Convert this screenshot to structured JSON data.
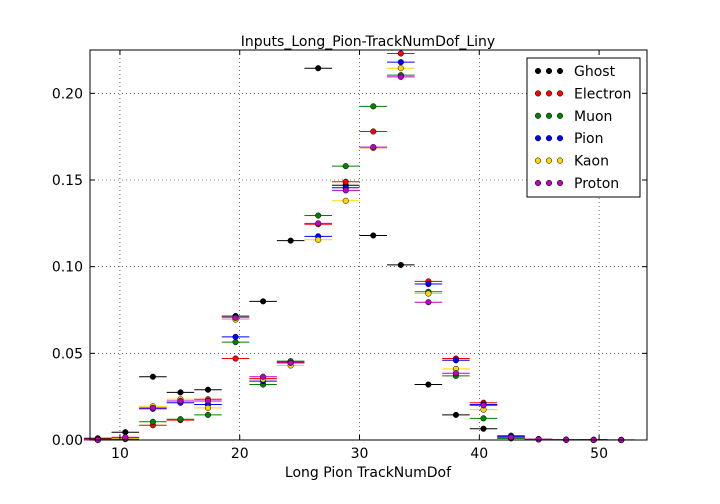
{
  "chart_data": {
    "type": "scatter",
    "title": "Inputs_Long_Pion-TrackNumDof_Liny",
    "xlabel": "Long Pion TrackNumDof",
    "ylabel": "",
    "xlim": [
      7.5,
      54
    ],
    "ylim": [
      0,
      0.225
    ],
    "xticks": [
      10,
      20,
      30,
      40,
      50
    ],
    "yticks": [
      0.0,
      0.05,
      0.1,
      0.15,
      0.2
    ],
    "ytick_labels": [
      "0.00",
      "0.05",
      "0.10",
      "0.15",
      "0.20"
    ],
    "grid": true,
    "legend_position": "top-right",
    "bin_half_width": 1.15,
    "x": [
      8.15,
      10.45,
      12.75,
      15.05,
      17.35,
      19.65,
      21.95,
      24.25,
      26.55,
      28.85,
      31.15,
      33.45,
      35.75,
      38.05,
      40.35,
      42.65,
      44.95,
      47.25,
      49.55,
      51.85
    ],
    "series": [
      {
        "name": "Ghost",
        "color": "#000000",
        "values": [
          0.001,
          0.0045,
          0.0365,
          0.0275,
          0.029,
          0.0715,
          0.08,
          0.115,
          0.2145,
          0.147,
          0.118,
          0.101,
          0.032,
          0.0145,
          0.0065,
          0.001,
          0.0005,
          0.0002,
          0.0002,
          0.0001
        ]
      },
      {
        "name": "Electron",
        "color": "#ff0000",
        "values": [
          0.0005,
          0.0015,
          0.0085,
          0.0115,
          0.0235,
          0.047,
          0.0355,
          0.045,
          0.1245,
          0.149,
          0.178,
          0.223,
          0.0915,
          0.047,
          0.0215,
          0.0025,
          0.0005,
          0.0002,
          0.0001,
          0.0
        ]
      },
      {
        "name": "Muon",
        "color": "#008000",
        "values": [
          0.0,
          0.0005,
          0.0105,
          0.012,
          0.0145,
          0.0565,
          0.032,
          0.0455,
          0.1295,
          0.158,
          0.1925,
          0.2105,
          0.0855,
          0.037,
          0.0125,
          0.001,
          0.0003,
          0.0001,
          0.0,
          0.0
        ]
      },
      {
        "name": "Pion",
        "color": "#0000ff",
        "values": [
          0.0,
          0.001,
          0.018,
          0.0215,
          0.0205,
          0.0595,
          0.034,
          0.0445,
          0.1175,
          0.1455,
          0.1685,
          0.218,
          0.09,
          0.046,
          0.0205,
          0.002,
          0.0005,
          0.0001,
          0.0,
          0.0
        ]
      },
      {
        "name": "Kaon",
        "color": "#ffd700",
        "values": [
          0.0,
          0.001,
          0.0195,
          0.0235,
          0.0185,
          0.0695,
          0.035,
          0.043,
          0.1155,
          0.138,
          0.1685,
          0.2145,
          0.0845,
          0.041,
          0.0175,
          0.0015,
          0.0004,
          0.0001,
          0.0,
          0.0
        ]
      },
      {
        "name": "Proton",
        "color": "#bf00bf",
        "values": [
          0.0,
          0.0015,
          0.0185,
          0.0225,
          0.0225,
          0.0705,
          0.0365,
          0.0445,
          0.125,
          0.144,
          0.169,
          0.2095,
          0.0795,
          0.0385,
          0.02,
          0.0015,
          0.0004,
          0.0001,
          0.0,
          0.0
        ]
      }
    ]
  }
}
